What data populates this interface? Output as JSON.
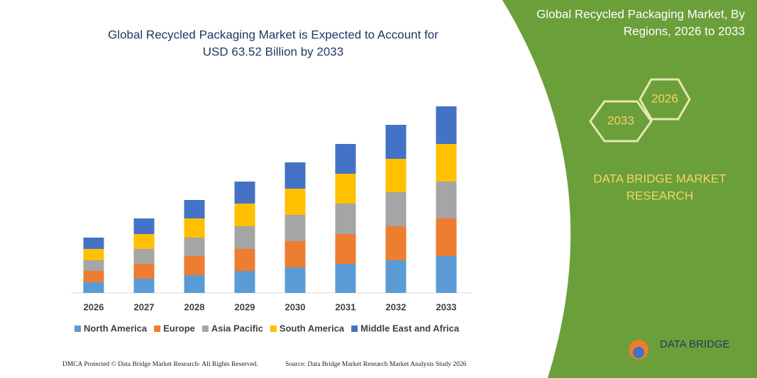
{
  "chart_data": {
    "type": "bar",
    "stacked": true,
    "title": [
      "Global Recycled Packaging Market is Expected to Account for",
      "USD 63.52 Billion by 2033"
    ],
    "categories": [
      "2026",
      "2027",
      "2028",
      "2029",
      "2030",
      "2031",
      "2032",
      "2033"
    ],
    "series": [
      {
        "name": "North America",
        "color": "#5b9bd5",
        "values": [
          15,
          20,
          25,
          31,
          36,
          41,
          46,
          52
        ]
      },
      {
        "name": "Europe",
        "color": "#ed7d31",
        "values": [
          16,
          21,
          27,
          31,
          37,
          42,
          48,
          53
        ]
      },
      {
        "name": "Asia Pacific",
        "color": "#a5a5a5",
        "values": [
          15,
          21,
          26,
          32,
          37,
          43,
          48,
          52
        ]
      },
      {
        "name": "South America",
        "color": "#ffc000",
        "values": [
          16,
          21,
          27,
          32,
          37,
          42,
          47,
          53
        ]
      },
      {
        "name": "Middle East and Africa",
        "color": "#4472c4",
        "values": [
          16,
          22,
          26,
          31,
          37,
          42,
          48,
          53
        ]
      }
    ]
  },
  "side_panel": {
    "title": [
      "Global Recycled Packaging Market, By",
      "Regions, 2026 to 2033"
    ],
    "hexagons": [
      "2026",
      "2033"
    ],
    "brand": [
      "DATA BRIDGE MARKET",
      "RESEARCH"
    ]
  },
  "footer": {
    "left": "DMCA Protected © Data Bridge Market Research-  All Rights Reserved.",
    "right": "Source: Data Bridge Market Research  Market Analysis Study 2026"
  },
  "logo": "DATA BRIDGE"
}
